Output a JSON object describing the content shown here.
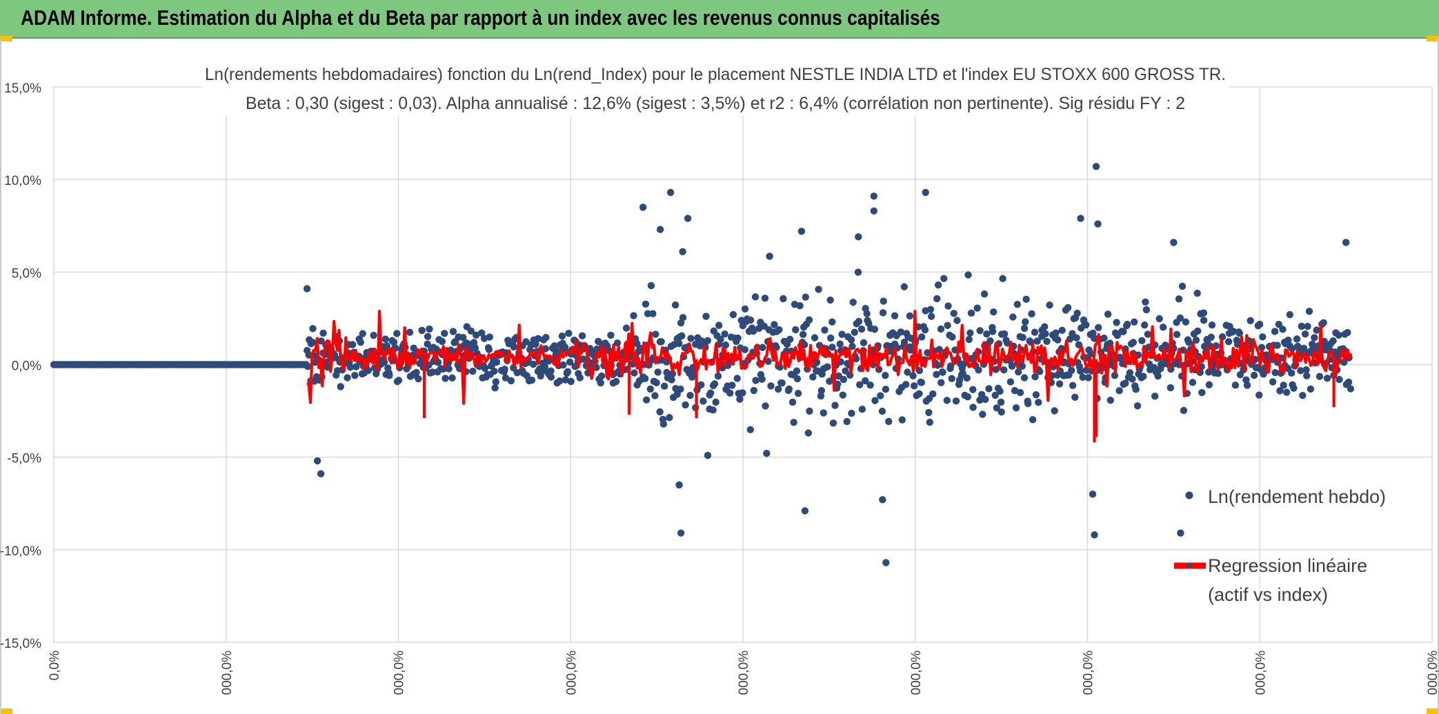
{
  "header": {
    "title": "ADAM Informe. Estimation du Alpha et du Beta par rapport à un index avec les revenus connus capitalisés"
  },
  "colors": {
    "header_bg": "#7ec77e",
    "corner_accent": "#f2c200",
    "scatter": "#2e4a7a",
    "regression": "#ff0000",
    "grid": "#d9d9d9"
  },
  "chart_data": {
    "type": "scatter",
    "title": "Ln(rendements hebdomadaires) fonction du Ln(rend_Index) pour le placement NESTLE INDIA LTD et l'index EU STOXX 600 GROSS TR.",
    "subtitle": "Beta : 0,30 (sigest : 0,03). Alpha annualisé : 12,6% (sigest : 3,5%) et r2 : 6,4% (corrélation non pertinente). Sig résidu FY : 2",
    "xlabel": "",
    "ylabel": "",
    "ylim": [
      -15,
      15
    ],
    "y_ticks": [
      15,
      10,
      5,
      0,
      -5,
      -10,
      -15
    ],
    "y_tick_labels": [
      "15,0%",
      "10,0%",
      "5,0%",
      "0,0%",
      "-5,0%",
      "-10,0%",
      "-15,0%"
    ],
    "xlim": [
      0,
      8
    ],
    "x_ticks": [
      0,
      1,
      2,
      3,
      4,
      5,
      6,
      7,
      8
    ],
    "x_tick_labels": [
      "0,0%",
      "000,0%",
      "000,0%",
      "000,0%",
      "000,0%",
      "000,0%",
      "000,0%",
      "000,0%",
      "000,0%"
    ],
    "grid": true,
    "legend_position": "bottom-right",
    "series": [
      {
        "name": "Ln(rendement hebdo)",
        "kind": "scatter",
        "zero_segment_x": [
          0,
          1.47
        ],
        "data_x_range": [
          1.47,
          7.53
        ],
        "notable_points": [
          {
            "x": 1.47,
            "y": 4.1
          },
          {
            "x": 1.53,
            "y": -5.2
          },
          {
            "x": 1.55,
            "y": -5.9
          },
          {
            "x": 3.42,
            "y": 8.5
          },
          {
            "x": 3.58,
            "y": 9.3
          },
          {
            "x": 3.52,
            "y": 7.3
          },
          {
            "x": 3.68,
            "y": 7.9
          },
          {
            "x": 3.65,
            "y": 6.1
          },
          {
            "x": 3.64,
            "y": -9.1
          },
          {
            "x": 3.63,
            "y": -6.5
          },
          {
            "x": 4.34,
            "y": 7.2
          },
          {
            "x": 4.36,
            "y": -7.9
          },
          {
            "x": 4.76,
            "y": 9.1
          },
          {
            "x": 4.76,
            "y": 8.3
          },
          {
            "x": 4.67,
            "y": 6.9
          },
          {
            "x": 4.83,
            "y": -10.7
          },
          {
            "x": 4.81,
            "y": -7.3
          },
          {
            "x": 5.06,
            "y": 9.3
          },
          {
            "x": 5.96,
            "y": 7.9
          },
          {
            "x": 6.05,
            "y": 10.7
          },
          {
            "x": 6.06,
            "y": 7.6
          },
          {
            "x": 6.04,
            "y": -9.2
          },
          {
            "x": 6.03,
            "y": -7.0
          },
          {
            "x": 6.54,
            "y": -9.1
          },
          {
            "x": 6.5,
            "y": 6.6
          },
          {
            "x": 7.5,
            "y": 6.6
          }
        ]
      },
      {
        "name": "Regression linéaire (actif vs index)",
        "kind": "line",
        "data_x_range": [
          1.47,
          7.53
        ],
        "typical_range": [
          -2.5,
          3.2
        ]
      }
    ]
  }
}
